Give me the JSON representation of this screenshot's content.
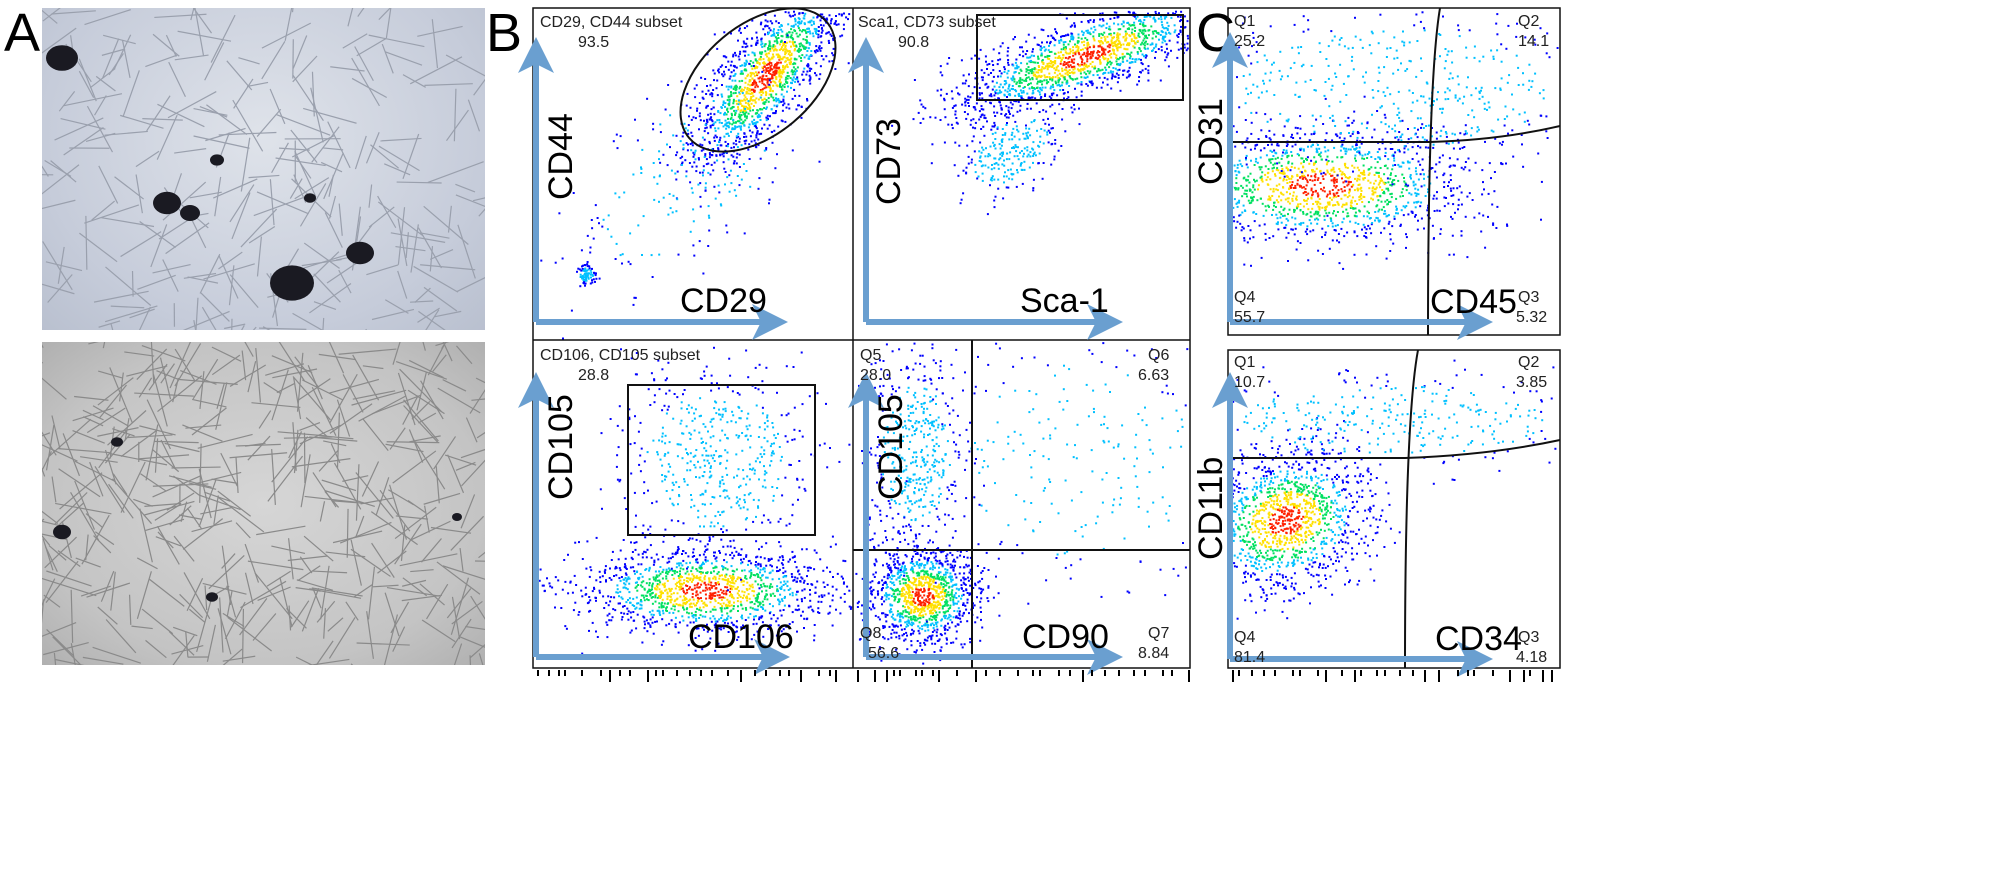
{
  "panels": {
    "a": "A",
    "b": "B",
    "c": "C"
  },
  "colors": {
    "arrow": "#6a9fd0",
    "gate": "#111111",
    "density": [
      "#0000ff",
      "#00c0ff",
      "#00e060",
      "#ffe000",
      "#ff2000"
    ]
  },
  "chart_data": [
    {
      "type": "scatter",
      "panel": "B",
      "gate": "ellipse",
      "gate_label": "CD29, CD44 subset",
      "gate_value": "93.5",
      "xlabel": "CD29",
      "ylabel": "CD44",
      "scale": "log"
    },
    {
      "type": "scatter",
      "panel": "B",
      "gate": "rectangle",
      "gate_label": "Sca1, CD73 subset",
      "gate_value": "90.8",
      "xlabel": "Sca-1",
      "ylabel": "CD73",
      "scale": "log"
    },
    {
      "type": "scatter",
      "panel": "B",
      "gate": "rectangle",
      "gate_label": "CD106, CD105 subset",
      "gate_value": "28.8",
      "xlabel": "CD106",
      "ylabel": "CD105",
      "scale": "log"
    },
    {
      "type": "scatter",
      "panel": "B",
      "gate": "quadrant",
      "xlabel": "CD90",
      "ylabel": "CD105",
      "scale": "log",
      "quadrants": [
        {
          "name": "Q5",
          "value": "28.0"
        },
        {
          "name": "Q6",
          "value": "6.63"
        },
        {
          "name": "Q7",
          "value": "8.84"
        },
        {
          "name": "Q8",
          "value": "56.6"
        }
      ]
    },
    {
      "type": "scatter",
      "panel": "C",
      "gate": "quadrant",
      "xlabel": "CD45",
      "ylabel": "CD31",
      "scale": "log",
      "quadrants": [
        {
          "name": "Q1",
          "value": "25.2"
        },
        {
          "name": "Q2",
          "value": "14.1"
        },
        {
          "name": "Q3",
          "value": "5.32"
        },
        {
          "name": "Q4",
          "value": "55.7"
        }
      ]
    },
    {
      "type": "scatter",
      "panel": "C",
      "gate": "quadrant",
      "xlabel": "CD34",
      "ylabel": "CD11b",
      "scale": "log",
      "quadrants": [
        {
          "name": "Q1",
          "value": "10.7"
        },
        {
          "name": "Q2",
          "value": "3.85"
        },
        {
          "name": "Q3",
          "value": "4.18"
        },
        {
          "name": "Q4",
          "value": "81.4"
        }
      ]
    }
  ]
}
